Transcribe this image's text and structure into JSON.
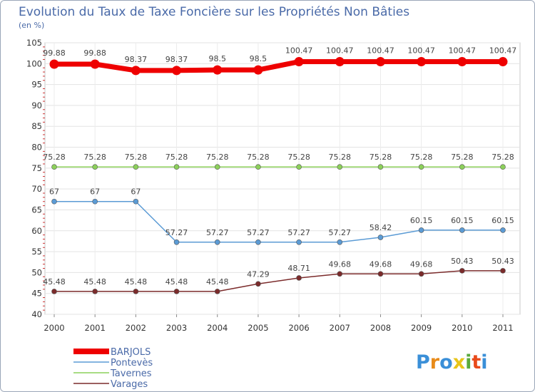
{
  "chart_data": {
    "type": "line",
    "title": "Evolution du Taux de Taxe Foncière sur les Propriétés Non Bâties",
    "unit_label": "(en %)",
    "xlabel": "",
    "ylabel": "",
    "ylim": [
      40,
      105
    ],
    "y_tick_step": 5,
    "grid": true,
    "legend_position": "bottom-left",
    "categories": [
      "2000",
      "2001",
      "2002",
      "2003",
      "2004",
      "2005",
      "2006",
      "2007",
      "2008",
      "2009",
      "2010",
      "2011"
    ],
    "series": [
      {
        "name": "BARJOLS",
        "color": "#ee0000",
        "values": [
          99.88,
          99.88,
          98.37,
          98.37,
          98.5,
          98.5,
          100.47,
          100.47,
          100.47,
          100.47,
          100.47,
          100.47
        ],
        "labels": [
          "99.88",
          "99.88",
          "98.37",
          "98.37",
          "98.5",
          "98.5",
          "100.47",
          "100.47",
          "100.47",
          "100.47",
          "100.47",
          "100.47"
        ]
      },
      {
        "name": "Pontevès",
        "color": "#5b9bd5",
        "values": [
          67,
          67,
          67,
          57.27,
          57.27,
          57.27,
          57.27,
          57.27,
          58.42,
          60.15,
          60.15,
          60.15
        ],
        "labels": [
          "67",
          "67",
          "67",
          "57.27",
          "57.27",
          "57.27",
          "57.27",
          "57.27",
          "58.42",
          "60.15",
          "60.15",
          "60.15"
        ]
      },
      {
        "name": "Tavernes",
        "color": "#8cd05a",
        "values": [
          75.28,
          75.28,
          75.28,
          75.28,
          75.28,
          75.28,
          75.28,
          75.28,
          75.28,
          75.28,
          75.28,
          75.28
        ],
        "labels": [
          "75.28",
          "75.28",
          "75.28",
          "75.28",
          "75.28",
          "75.28",
          "75.28",
          "75.28",
          "75.28",
          "75.28",
          "75.28",
          "75.28"
        ]
      },
      {
        "name": "Varages",
        "color": "#7b2b2b",
        "values": [
          45.48,
          45.48,
          45.48,
          45.48,
          45.48,
          47.29,
          48.71,
          49.68,
          49.68,
          49.68,
          50.43,
          50.43
        ],
        "labels": [
          "45.48",
          "45.48",
          "45.48",
          "45.48",
          "45.48",
          "47.29",
          "48.71",
          "49.68",
          "49.68",
          "49.68",
          "50.43",
          "50.43"
        ]
      }
    ]
  },
  "logo": {
    "letters": [
      "P",
      "r",
      "o",
      "x",
      "i",
      "t",
      "i"
    ],
    "colors": [
      "#3a8fd8",
      "#e88b1a",
      "#3a8fd8",
      "#e8c51a",
      "#5aaa3c",
      "#e84a1a",
      "#3a8fd8"
    ]
  }
}
